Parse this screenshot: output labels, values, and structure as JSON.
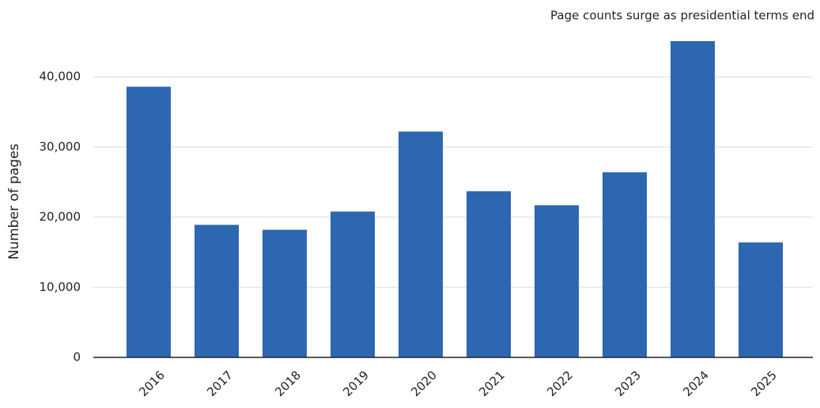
{
  "chart_data": {
    "type": "bar",
    "title": "Page counts surge as presidential terms end",
    "y_label": "Number of pages",
    "categories": [
      "2016",
      "2017",
      "2018",
      "2019",
      "2020",
      "2021",
      "2022",
      "2023",
      "2024",
      "2025"
    ],
    "values": [
      38600,
      18900,
      18200,
      20800,
      32200,
      23700,
      21700,
      26400,
      45100,
      16400
    ],
    "color": "#2d67b2",
    "ylim": [
      0,
      46000
    ],
    "yticks": [
      0,
      {
        "value": 10000,
        "label": "10,000"
      },
      {
        "value": 20000,
        "label": "20,000"
      },
      {
        "value": 30000,
        "label": "30,000"
      },
      {
        "value": 40000,
        "label": "40,000"
      }
    ],
    "grid": true
  }
}
